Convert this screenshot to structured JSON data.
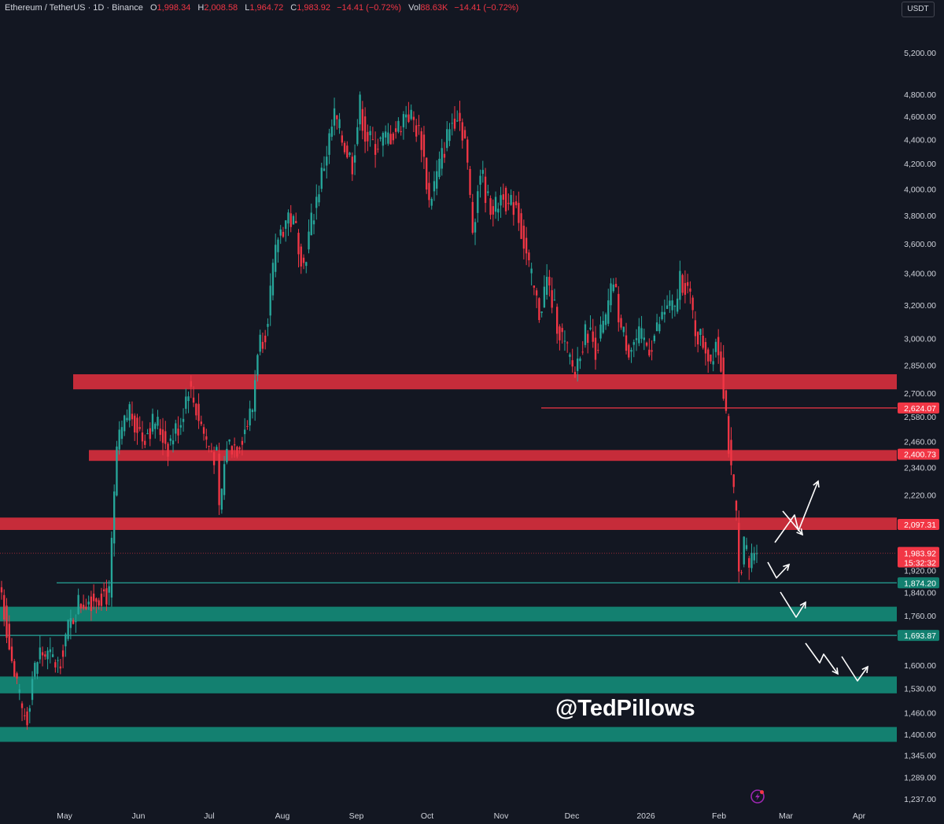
{
  "header": {
    "symbol": "Ethereum / TetherUS · 1D · Binance",
    "o_label": "O",
    "o_value": "1,998.34",
    "h_label": "H",
    "h_value": "2,008.58",
    "l_label": "L",
    "l_value": "1,964.72",
    "c_label": "C",
    "c_value": "1,983.92",
    "change": "−14.41 (−0.72%)",
    "vol_label": "Vol",
    "vol_value": "88.63K",
    "vol_change": "−14.41 (−0.72%)"
  },
  "currency_button": "USDT",
  "watermark": "@TedPillows",
  "colors": {
    "background": "#131722",
    "up": "#26a69a",
    "down": "#f23645",
    "resistance_zone": "#c62c3a",
    "support_zone": "#138070",
    "text": "#d1d4dc",
    "arrows": "#ffffff"
  },
  "icons": [
    "lightning-icon"
  ],
  "chart_data": {
    "type": "candlestick",
    "symbol": "ETHUSDT",
    "interval": "1D",
    "y_scale": "log",
    "ylim": [
      1237,
      5300
    ],
    "y_ticks": [
      {
        "value": 5200,
        "label": "5,200.00"
      },
      {
        "value": 4800,
        "label": "4,800.00"
      },
      {
        "value": 4600,
        "label": "4,600.00"
      },
      {
        "value": 4400,
        "label": "4,400.00"
      },
      {
        "value": 4200,
        "label": "4,200.00"
      },
      {
        "value": 4000,
        "label": "4,000.00"
      },
      {
        "value": 3800,
        "label": "3,800.00"
      },
      {
        "value": 3600,
        "label": "3,600.00"
      },
      {
        "value": 3400,
        "label": "3,400.00"
      },
      {
        "value": 3200,
        "label": "3,200.00"
      },
      {
        "value": 3000,
        "label": "3,000.00"
      },
      {
        "value": 2850,
        "label": "2,850.00"
      },
      {
        "value": 2700,
        "label": "2,700.00"
      },
      {
        "value": 2580,
        "label": "2,580.00"
      },
      {
        "value": 2460,
        "label": "2,460.00"
      },
      {
        "value": 2340,
        "label": "2,340.00"
      },
      {
        "value": 2220,
        "label": "2,220.00"
      },
      {
        "value": 1920,
        "label": "1,920.00"
      },
      {
        "value": 1840,
        "label": "1,840.00"
      },
      {
        "value": 1760,
        "label": "1,760.00"
      },
      {
        "value": 1600,
        "label": "1,600.00"
      },
      {
        "value": 1530,
        "label": "1,530.00"
      },
      {
        "value": 1460,
        "label": "1,460.00"
      },
      {
        "value": 1400,
        "label": "1,400.00"
      },
      {
        "value": 1345,
        "label": "1,345.00"
      },
      {
        "value": 1289,
        "label": "1,289.00"
      },
      {
        "value": 1237,
        "label": "1,237.00"
      }
    ],
    "x_labels": [
      "May",
      "Jun",
      "Jul",
      "Aug",
      "Sep",
      "Oct",
      "Nov",
      "Dec",
      "2026",
      "Feb",
      "Mar",
      "Apr"
    ],
    "price_tags": [
      {
        "label": "2,624.07",
        "color": "#f23645"
      },
      {
        "label": "2,400.73",
        "color": "#f23645"
      },
      {
        "label": "2,097.31",
        "color": "#f23645"
      },
      {
        "label": "1,983.92",
        "color": "#f23645",
        "countdown": "15:32:32"
      },
      {
        "label": "1,874.20",
        "color": "#138070"
      },
      {
        "label": "1,693.87",
        "color": "#138070"
      }
    ],
    "levels": [
      {
        "value": 2624.07,
        "kind": "resistance line"
      },
      {
        "value": 1874.2,
        "kind": "support line"
      },
      {
        "value": 1693.87,
        "kind": "support line"
      }
    ],
    "zones": [
      {
        "from": 2720,
        "to": 2800,
        "kind": "resistance"
      },
      {
        "from": 2370,
        "to": 2420,
        "kind": "resistance"
      },
      {
        "from": 2075,
        "to": 2125,
        "kind": "resistance"
      },
      {
        "from": 1740,
        "to": 1790,
        "kind": "support"
      },
      {
        "from": 1515,
        "to": 1565,
        "kind": "support"
      },
      {
        "from": 1380,
        "to": 1420,
        "kind": "support"
      }
    ],
    "last_close": 1983.92,
    "anchors": [
      [
        0,
        1840
      ],
      [
        5,
        1560
      ],
      [
        8,
        1460
      ],
      [
        10,
        1450
      ],
      [
        12,
        1560
      ],
      [
        15,
        1640
      ],
      [
        19,
        1620
      ],
      [
        22,
        1600
      ],
      [
        25,
        1690
      ],
      [
        30,
        1800
      ],
      [
        35,
        1820
      ],
      [
        40,
        1840
      ],
      [
        42,
        1825
      ],
      [
        45,
        2420
      ],
      [
        50,
        2620
      ],
      [
        55,
        2480
      ],
      [
        60,
        2560
      ],
      [
        65,
        2440
      ],
      [
        70,
        2560
      ],
      [
        73,
        2740
      ],
      [
        76,
        2620
      ],
      [
        80,
        2460
      ],
      [
        84,
        2380
      ],
      [
        85,
        2140
      ],
      [
        88,
        2450
      ],
      [
        92,
        2440
      ],
      [
        96,
        2550
      ],
      [
        98,
        2620
      ],
      [
        100,
        2950
      ],
      [
        103,
        3050
      ],
      [
        108,
        3650
      ],
      [
        112,
        3800
      ],
      [
        115,
        3700
      ],
      [
        118,
        3450
      ],
      [
        121,
        3750
      ],
      [
        126,
        4200
      ],
      [
        130,
        4600
      ],
      [
        133,
        4400
      ],
      [
        137,
        4200
      ],
      [
        140,
        4700
      ],
      [
        142,
        4450
      ],
      [
        145,
        4350
      ],
      [
        150,
        4400
      ],
      [
        155,
        4500
      ],
      [
        158,
        4650
      ],
      [
        161,
        4550
      ],
      [
        164,
        4400
      ],
      [
        167,
        3900
      ],
      [
        170,
        4100
      ],
      [
        175,
        4500
      ],
      [
        178,
        4650
      ],
      [
        181,
        4400
      ],
      [
        184,
        3700
      ],
      [
        187,
        4150
      ],
      [
        190,
        3900
      ],
      [
        193,
        3850
      ],
      [
        196,
        4000
      ],
      [
        198,
        3850
      ],
      [
        201,
        3900
      ],
      [
        203,
        3700
      ],
      [
        207,
        3350
      ],
      [
        210,
        3150
      ],
      [
        213,
        3350
      ],
      [
        217,
        3100
      ],
      [
        220,
        2950
      ],
      [
        224,
        2800
      ],
      [
        226,
        2950
      ],
      [
        229,
        3050
      ],
      [
        232,
        2950
      ],
      [
        236,
        3100
      ],
      [
        239,
        3350
      ],
      [
        242,
        3050
      ],
      [
        245,
        2950
      ],
      [
        249,
        3000
      ],
      [
        253,
        2950
      ],
      [
        256,
        3050
      ],
      [
        260,
        3200
      ],
      [
        263,
        3150
      ],
      [
        265,
        3380
      ],
      [
        268,
        3300
      ],
      [
        271,
        3050
      ],
      [
        275,
        2950
      ],
      [
        277,
        2880
      ],
      [
        279,
        3000
      ],
      [
        281,
        2870
      ],
      [
        283,
        2600
      ],
      [
        285,
        2300
      ],
      [
        287,
        2120
      ],
      [
        288,
        1900
      ],
      [
        290,
        2020
      ],
      [
        292,
        1930
      ],
      [
        294,
        2000
      ],
      [
        295,
        1983.92
      ]
    ]
  }
}
